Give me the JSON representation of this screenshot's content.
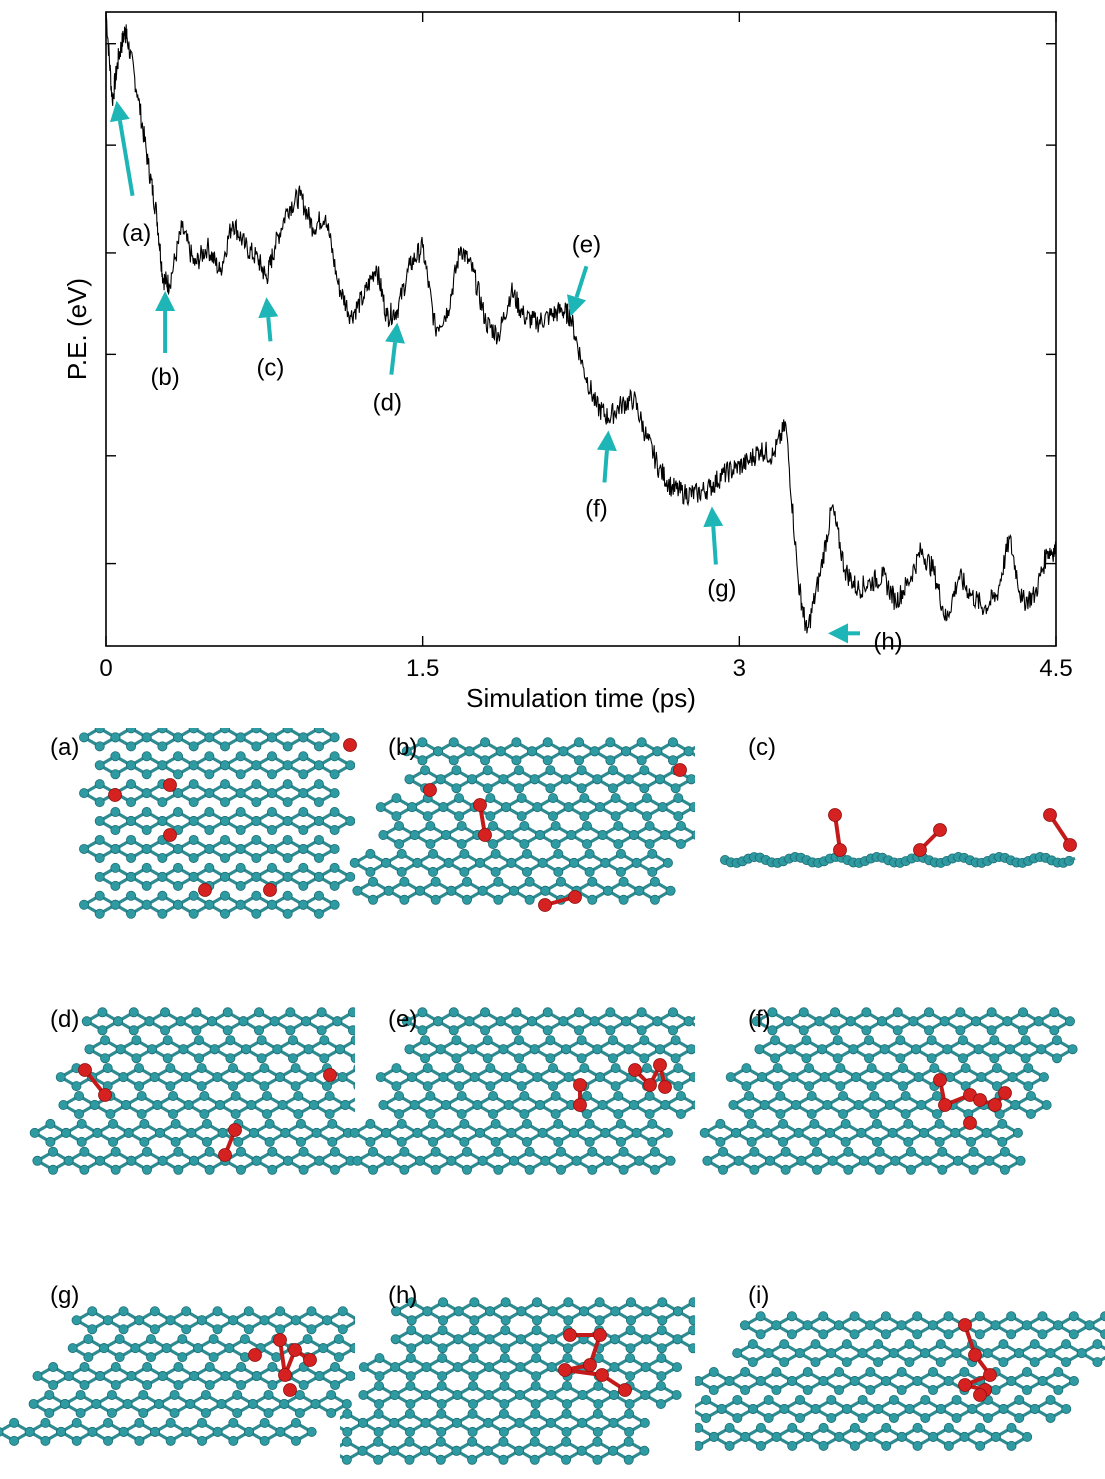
{
  "chart_data": {
    "type": "line",
    "title": "",
    "xlabel": "Simulation time (ps)",
    "ylabel": "P.E. (eV)",
    "xlim": [
      0,
      4.5
    ],
    "xticks": [
      {
        "value": 0,
        "label": "0"
      },
      {
        "value": 1.5,
        "label": "1.5"
      },
      {
        "value": 3,
        "label": "3"
      },
      {
        "value": 4.5,
        "label": "4.5"
      }
    ],
    "ylim": [
      0,
      1
    ],
    "yticks_unlabeled": [
      0.13,
      0.3,
      0.46,
      0.62,
      0.79,
      0.95
    ],
    "grid": false,
    "series": [
      {
        "name": "",
        "x": [
          0,
          0.03,
          0.06,
          0.09,
          0.1,
          0.15,
          0.2,
          0.24,
          0.27,
          0.3,
          0.36,
          0.42,
          0.48,
          0.54,
          0.6,
          0.66,
          0.72,
          0.76,
          0.8,
          0.86,
          0.92,
          0.98,
          1.04,
          1.1,
          1.16,
          1.22,
          1.28,
          1.33,
          1.38,
          1.44,
          1.5,
          1.56,
          1.62,
          1.68,
          1.74,
          1.8,
          1.86,
          1.92,
          1.98,
          2.04,
          2.1,
          2.16,
          2.2,
          2.26,
          2.32,
          2.38,
          2.44,
          2.5,
          2.56,
          2.62,
          2.68,
          2.74,
          2.8,
          2.86,
          2.92,
          2.98,
          3.04,
          3.1,
          3.16,
          3.22,
          3.28,
          3.32,
          3.38,
          3.44,
          3.5,
          3.56,
          3.62,
          3.68,
          3.74,
          3.8,
          3.86,
          3.92,
          3.98,
          4.04,
          4.1,
          4.16,
          4.22,
          4.28,
          4.34,
          4.4,
          4.46,
          4.5
        ],
        "y": [
          1.0,
          0.86,
          0.93,
          0.97,
          0.96,
          0.87,
          0.76,
          0.68,
          0.58,
          0.57,
          0.66,
          0.6,
          0.63,
          0.59,
          0.67,
          0.63,
          0.61,
          0.58,
          0.63,
          0.69,
          0.71,
          0.66,
          0.68,
          0.57,
          0.52,
          0.55,
          0.6,
          0.52,
          0.53,
          0.6,
          0.63,
          0.5,
          0.53,
          0.63,
          0.59,
          0.51,
          0.49,
          0.56,
          0.52,
          0.51,
          0.52,
          0.53,
          0.52,
          0.44,
          0.38,
          0.36,
          0.38,
          0.39,
          0.33,
          0.28,
          0.25,
          0.24,
          0.24,
          0.25,
          0.27,
          0.28,
          0.29,
          0.31,
          0.3,
          0.35,
          0.1,
          0.02,
          0.11,
          0.22,
          0.12,
          0.09,
          0.1,
          0.11,
          0.07,
          0.1,
          0.15,
          0.12,
          0.04,
          0.11,
          0.08,
          0.06,
          0.08,
          0.17,
          0.07,
          0.08,
          0.15,
          0.15
        ]
      }
    ],
    "annotations": [
      {
        "label": "(a)",
        "x": 0.05,
        "y": 0.86
      },
      {
        "label": "(b)",
        "x": 0.28,
        "y": 0.56
      },
      {
        "label": "(c)",
        "x": 0.76,
        "y": 0.55
      },
      {
        "label": "(d)",
        "x": 1.38,
        "y": 0.51
      },
      {
        "label": "(e)",
        "x": 2.2,
        "y": 0.52
      },
      {
        "label": "(f)",
        "x": 2.38,
        "y": 0.34
      },
      {
        "label": "(g)",
        "x": 2.87,
        "y": 0.22
      },
      {
        "label": "(h)",
        "x": 3.42,
        "y": 0.02
      }
    ]
  },
  "colors": {
    "annotation_arrow": "#1db5b5",
    "carbon": "#2e9ba3",
    "oxygen": "#d62121"
  },
  "panels": [
    {
      "label": "(a)",
      "view": "top"
    },
    {
      "label": "(b)",
      "view": "top"
    },
    {
      "label": "(c)",
      "view": "side"
    },
    {
      "label": "(d)",
      "view": "top"
    },
    {
      "label": "(e)",
      "view": "top"
    },
    {
      "label": "(f)",
      "view": "top"
    },
    {
      "label": "(g)",
      "view": "oblique"
    },
    {
      "label": "(h)",
      "view": "oblique"
    },
    {
      "label": "(i)",
      "view": "oblique"
    }
  ]
}
